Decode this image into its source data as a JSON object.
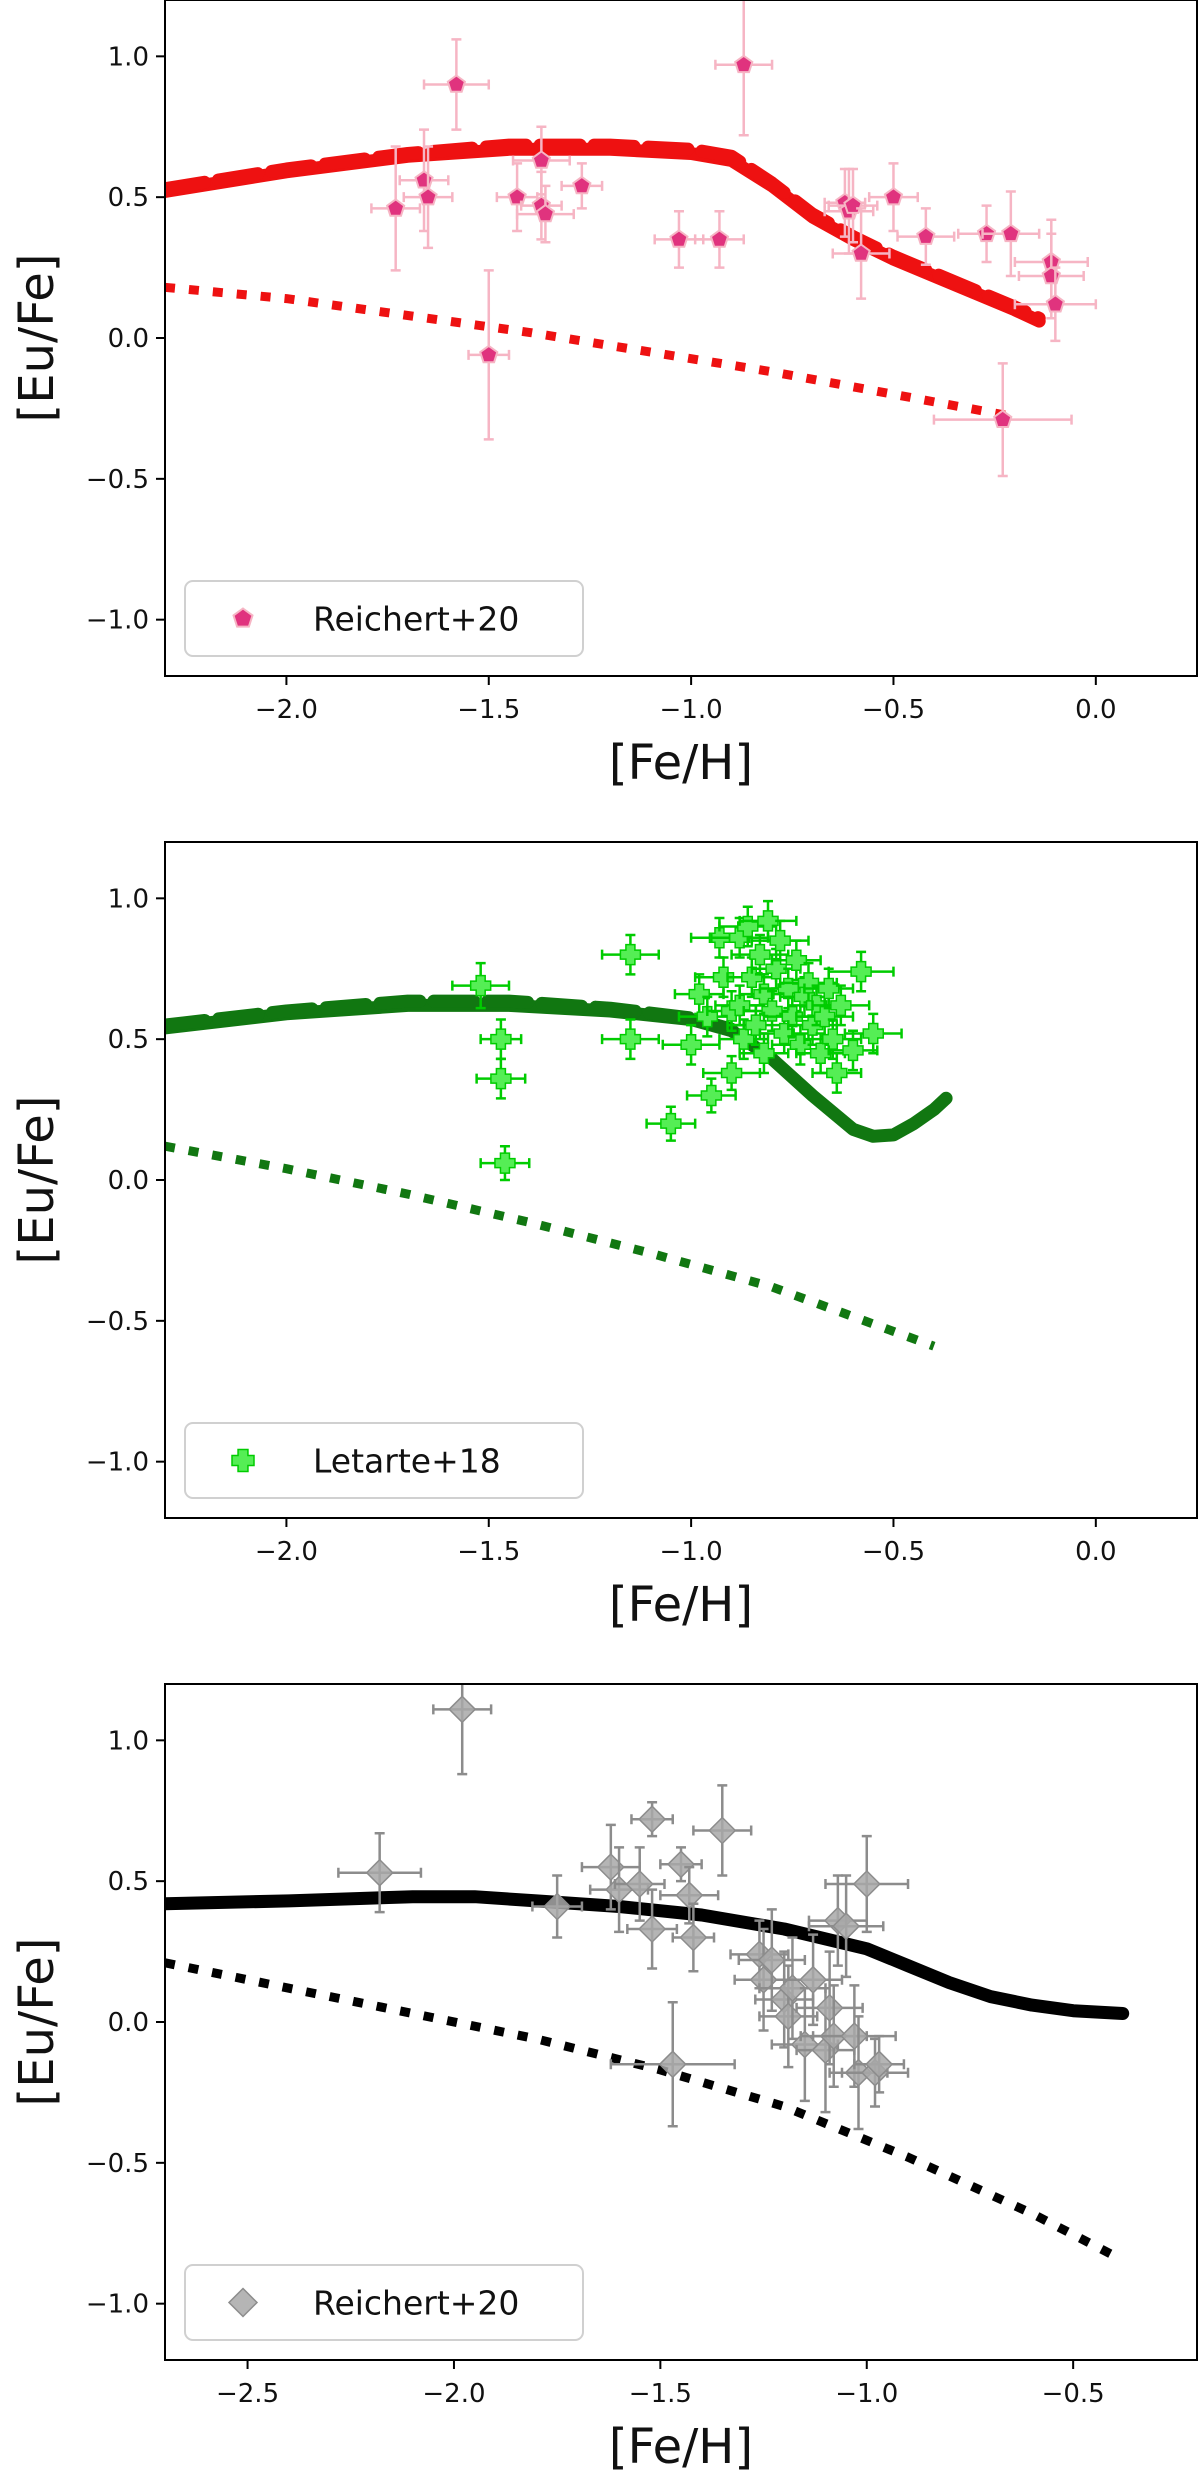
{
  "chart_data": [
    {
      "type": "scatter",
      "xlabel": "[Fe/H]",
      "ylabel": "[Eu/Fe]",
      "xlim": [
        -2.3,
        0.25
      ],
      "ylim": [
        -1.2,
        1.2
      ],
      "xticks": [
        -2.0,
        -1.5,
        -1.0,
        -0.5,
        0.0
      ],
      "xtick_labels": [
        "−2.0",
        "−1.5",
        "−1.0",
        "−0.5",
        "0.0"
      ],
      "yticks": [
        1.0,
        0.5,
        0.0,
        -0.5,
        -1.0
      ],
      "ytick_labels": [
        "1.0",
        "0.5",
        "0.0",
        "−0.5",
        "−1.0"
      ],
      "grid": false,
      "legend_position": "bottom-left",
      "color": "#ee1111",
      "points": {
        "name": "Reichert+20",
        "marker": "pentagon",
        "face": "#e0337e",
        "edge": "#f6b5c4",
        "x": [
          -1.73,
          -1.66,
          -1.65,
          -1.58,
          -1.5,
          -1.43,
          -1.37,
          -1.37,
          -1.36,
          -1.27,
          -1.03,
          -0.93,
          -0.87,
          -0.62,
          -0.61,
          -0.6,
          -0.58,
          -0.5,
          -0.42,
          -0.27,
          -0.21,
          -0.11,
          -0.11,
          -0.1,
          -0.23
        ],
        "y": [
          0.46,
          0.56,
          0.5,
          0.9,
          -0.06,
          0.5,
          0.63,
          0.47,
          0.44,
          0.54,
          0.35,
          0.35,
          0.97,
          0.48,
          0.45,
          0.47,
          0.3,
          0.5,
          0.36,
          0.37,
          0.37,
          0.27,
          0.22,
          0.12,
          -0.29
        ],
        "xerr": [
          0.06,
          0.06,
          0.06,
          0.08,
          0.05,
          0.05,
          0.07,
          0.05,
          0.07,
          0.05,
          0.06,
          0.06,
          0.07,
          0.05,
          0.06,
          0.06,
          0.07,
          0.06,
          0.07,
          0.07,
          0.07,
          0.09,
          0.08,
          0.1,
          0.17
        ],
        "yerr": [
          0.22,
          0.18,
          0.18,
          0.16,
          0.3,
          0.12,
          0.12,
          0.12,
          0.1,
          0.08,
          0.1,
          0.1,
          0.25,
          0.12,
          0.15,
          0.13,
          0.16,
          0.12,
          0.1,
          0.1,
          0.15,
          0.15,
          0.15,
          0.13,
          0.2
        ]
      },
      "lines": [
        {
          "style": "solid",
          "x": [
            -2.3,
            -2.0,
            -1.7,
            -1.45,
            -1.2,
            -1.0,
            -0.9,
            -0.8,
            -0.7,
            -0.6,
            -0.5,
            -0.4,
            -0.3,
            -0.2,
            -0.14
          ],
          "y": [
            0.52,
            0.59,
            0.645,
            0.67,
            0.67,
            0.655,
            0.63,
            0.54,
            0.43,
            0.35,
            0.28,
            0.22,
            0.16,
            0.1,
            0.06
          ]
        },
        {
          "style": "dashed",
          "x": [
            -2.3,
            -2.0,
            -1.7,
            -1.45,
            -1.2,
            -1.0,
            -0.9,
            -0.8,
            -0.7,
            -0.6,
            -0.5,
            -0.4,
            -0.3,
            -0.2,
            -0.14
          ],
          "y": [
            0.53,
            0.6,
            0.655,
            0.685,
            0.685,
            0.67,
            0.645,
            0.55,
            0.44,
            0.36,
            0.29,
            0.23,
            0.17,
            0.11,
            0.07
          ]
        },
        {
          "style": "dotted",
          "x": [
            -2.3,
            -2.0,
            -1.7,
            -1.4,
            -1.1,
            -0.8,
            -0.5,
            -0.2
          ],
          "y": [
            0.18,
            0.14,
            0.08,
            0.02,
            -0.05,
            -0.12,
            -0.2,
            -0.28
          ]
        }
      ]
    },
    {
      "type": "scatter",
      "xlabel": "[Fe/H]",
      "ylabel": "[Eu/Fe]",
      "xlim": [
        -2.3,
        0.25
      ],
      "ylim": [
        -1.2,
        1.2
      ],
      "xticks": [
        -2.0,
        -1.5,
        -1.0,
        -0.5,
        0.0
      ],
      "xtick_labels": [
        "−2.0",
        "−1.5",
        "−1.0",
        "−0.5",
        "0.0"
      ],
      "yticks": [
        1.0,
        0.5,
        0.0,
        -0.5,
        -1.0
      ],
      "ytick_labels": [
        "1.0",
        "0.5",
        "0.0",
        "−0.5",
        "−1.0"
      ],
      "grid": false,
      "legend_position": "bottom-left",
      "color": "#117711",
      "points": {
        "name": "Letarte+18",
        "marker": "plus",
        "face": "#55ee55",
        "edge": "#00cc00",
        "x": [
          -1.52,
          -1.47,
          -1.47,
          -1.46,
          -1.15,
          -1.15,
          -1.05,
          -1.0,
          -0.98,
          -0.96,
          -0.95,
          -0.93,
          -0.92,
          -0.9,
          -0.9,
          -0.88,
          -0.88,
          -0.87,
          -0.86,
          -0.85,
          -0.84,
          -0.83,
          -0.82,
          -0.82,
          -0.81,
          -0.8,
          -0.79,
          -0.78,
          -0.77,
          -0.76,
          -0.75,
          -0.74,
          -0.73,
          -0.72,
          -0.71,
          -0.7,
          -0.69,
          -0.68,
          -0.67,
          -0.66,
          -0.65,
          -0.64,
          -0.63,
          -0.6,
          -0.58,
          -0.55
        ],
        "y": [
          0.69,
          0.5,
          0.36,
          0.06,
          0.8,
          0.5,
          0.2,
          0.48,
          0.66,
          0.58,
          0.3,
          0.86,
          0.72,
          0.6,
          0.38,
          0.86,
          0.62,
          0.5,
          0.9,
          0.72,
          0.55,
          0.8,
          0.66,
          0.45,
          0.92,
          0.6,
          0.75,
          0.85,
          0.52,
          0.68,
          0.58,
          0.78,
          0.48,
          0.65,
          0.7,
          0.55,
          0.62,
          0.45,
          0.58,
          0.68,
          0.5,
          0.38,
          0.62,
          0.46,
          0.74,
          0.52
        ],
        "xerr": [
          0.07,
          0.05,
          0.06,
          0.06,
          0.07,
          0.07,
          0.06,
          0.07,
          0.06,
          0.07,
          0.06,
          0.07,
          0.07,
          0.06,
          0.07,
          0.07,
          0.06,
          0.06,
          0.07,
          0.06,
          0.07,
          0.07,
          0.06,
          0.06,
          0.07,
          0.07,
          0.06,
          0.07,
          0.06,
          0.07,
          0.07,
          0.06,
          0.07,
          0.06,
          0.07,
          0.06,
          0.07,
          0.06,
          0.07,
          0.06,
          0.07,
          0.06,
          0.07,
          0.06,
          0.08,
          0.07
        ],
        "yerr": [
          0.08,
          0.07,
          0.07,
          0.06,
          0.07,
          0.07,
          0.06,
          0.07,
          0.07,
          0.07,
          0.06,
          0.07,
          0.07,
          0.07,
          0.06,
          0.07,
          0.07,
          0.07,
          0.07,
          0.07,
          0.07,
          0.07,
          0.07,
          0.07,
          0.07,
          0.07,
          0.07,
          0.07,
          0.07,
          0.07,
          0.07,
          0.07,
          0.07,
          0.07,
          0.07,
          0.07,
          0.07,
          0.07,
          0.07,
          0.07,
          0.07,
          0.07,
          0.07,
          0.07,
          0.07,
          0.07
        ]
      },
      "lines": [
        {
          "style": "solid",
          "x": [
            -2.3,
            -2.0,
            -1.7,
            -1.45,
            -1.2,
            -1.0,
            -0.9,
            -0.8,
            -0.7,
            -0.6,
            -0.55,
            -0.5,
            -0.45,
            -0.4,
            -0.37
          ],
          "y": [
            0.54,
            0.59,
            0.62,
            0.62,
            0.6,
            0.57,
            0.53,
            0.43,
            0.3,
            0.18,
            0.155,
            0.16,
            0.2,
            0.25,
            0.29
          ]
        },
        {
          "style": "dashed",
          "x": [
            -2.3,
            -2.0,
            -1.7,
            -1.45,
            -1.2,
            -1.0,
            -0.9
          ],
          "y": [
            0.55,
            0.6,
            0.635,
            0.635,
            0.61,
            0.575,
            0.535
          ]
        },
        {
          "style": "dotted",
          "x": [
            -2.3,
            -2.0,
            -1.7,
            -1.4,
            -1.1,
            -0.8,
            -0.4
          ],
          "y": [
            0.12,
            0.04,
            -0.05,
            -0.15,
            -0.26,
            -0.38,
            -0.59
          ]
        }
      ]
    },
    {
      "type": "scatter",
      "xlabel": "[Fe/H]",
      "ylabel": "[Eu/Fe]",
      "xlim": [
        -2.7,
        -0.2
      ],
      "ylim": [
        -1.2,
        1.2
      ],
      "xticks": [
        -2.5,
        -2.0,
        -1.5,
        -1.0,
        -0.5
      ],
      "xtick_labels": [
        "−2.5",
        "−2.0",
        "−1.5",
        "−1.0",
        "−0.5"
      ],
      "yticks": [
        1.0,
        0.5,
        0.0,
        -0.5,
        -1.0
      ],
      "ytick_labels": [
        "1.0",
        "0.5",
        "0.0",
        "−0.5",
        "−1.0"
      ],
      "grid": false,
      "legend_position": "bottom-left",
      "color": "#000000",
      "points": {
        "name": "Reichert+20",
        "marker": "diamond",
        "face": "#a8a8a8",
        "edge": "#8c8c8c",
        "x": [
          -2.18,
          -1.98,
          -1.75,
          -1.62,
          -1.6,
          -1.55,
          -1.52,
          -1.52,
          -1.47,
          -1.45,
          -1.43,
          -1.42,
          -1.35,
          -1.26,
          -1.25,
          -1.23,
          -1.2,
          -1.19,
          -1.18,
          -1.15,
          -1.13,
          -1.1,
          -1.09,
          -1.08,
          -1.07,
          -1.05,
          -1.03,
          -1.02,
          -1.0,
          -0.98,
          -0.97
        ],
        "y": [
          0.53,
          1.11,
          0.41,
          0.55,
          0.47,
          0.49,
          0.72,
          0.33,
          -0.15,
          0.56,
          0.45,
          0.3,
          0.68,
          0.24,
          0.15,
          0.22,
          0.08,
          0.02,
          0.12,
          -0.08,
          0.15,
          -0.1,
          0.05,
          -0.05,
          0.36,
          0.34,
          -0.05,
          -0.18,
          0.49,
          -0.18,
          -0.15
        ],
        "xerr": [
          0.1,
          0.07,
          0.06,
          0.07,
          0.07,
          0.06,
          0.05,
          0.06,
          0.15,
          0.05,
          0.07,
          0.05,
          0.07,
          0.07,
          0.07,
          0.08,
          0.07,
          0.07,
          0.08,
          0.08,
          0.07,
          0.07,
          0.08,
          0.08,
          0.07,
          0.09,
          0.1,
          0.07,
          0.1,
          0.08,
          0.06
        ],
        "yerr": [
          0.14,
          0.23,
          0.11,
          0.15,
          0.15,
          0.13,
          0.06,
          0.14,
          0.22,
          0.06,
          0.1,
          0.12,
          0.16,
          0.12,
          0.18,
          0.18,
          0.17,
          0.18,
          0.18,
          0.2,
          0.16,
          0.22,
          0.2,
          0.18,
          0.16,
          0.18,
          0.18,
          0.2,
          0.17,
          0.12,
          0.1
        ]
      },
      "lines": [
        {
          "style": "solid",
          "x": [
            -2.7,
            -2.4,
            -2.1,
            -1.95,
            -1.8,
            -1.6,
            -1.4,
            -1.2,
            -1.0,
            -0.9,
            -0.8,
            -0.7,
            -0.6,
            -0.5,
            -0.38
          ],
          "y": [
            0.42,
            0.43,
            0.445,
            0.445,
            0.43,
            0.41,
            0.38,
            0.33,
            0.26,
            0.2,
            0.14,
            0.09,
            0.06,
            0.04,
            0.03
          ]
        },
        {
          "style": "dotted",
          "x": [
            -2.7,
            -2.4,
            -2.1,
            -1.8,
            -1.5,
            -1.2,
            -0.9,
            -0.6,
            -0.4
          ],
          "y": [
            0.21,
            0.12,
            0.03,
            -0.06,
            -0.17,
            -0.3,
            -0.48,
            -0.68,
            -0.83
          ]
        }
      ]
    }
  ]
}
